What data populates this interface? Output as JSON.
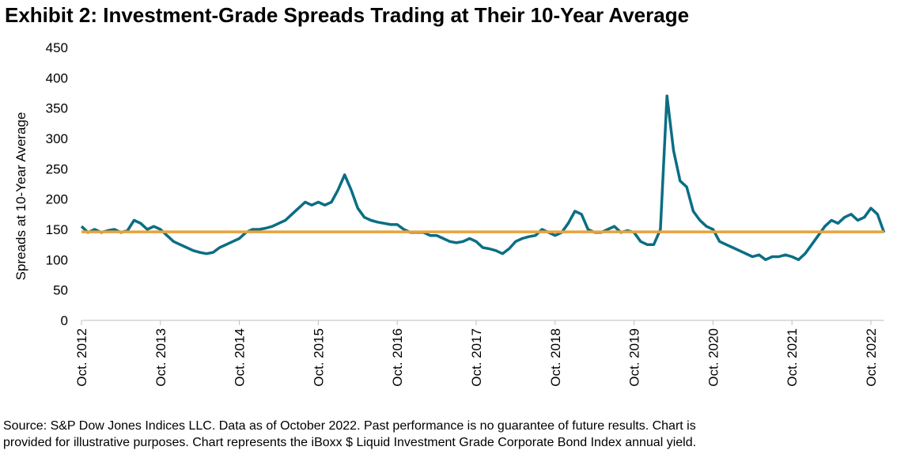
{
  "chart_data": {
    "type": "line",
    "title": "Exhibit 2: Investment-Grade Spreads Trading at Their 10-Year Average",
    "y_label": "Spreads at 10-Year Average",
    "notes": [
      "Source: S&P Dow Jones Indices LLC. Data as of October 2022. Past performance is no guarantee of future results. Chart is",
      "provided for illustrative purposes. Chart represents the iBoxx $ Liquid Investment Grade Corporate Bond Index annual yield."
    ],
    "categories": [
      "Oct. 2012",
      null,
      null,
      null,
      null,
      null,
      null,
      null,
      null,
      null,
      null,
      null,
      "Oct. 2013",
      null,
      null,
      null,
      null,
      null,
      null,
      null,
      null,
      null,
      null,
      null,
      "Oct. 2014",
      null,
      null,
      null,
      null,
      null,
      null,
      null,
      null,
      null,
      null,
      null,
      "Oct. 2015",
      null,
      null,
      null,
      null,
      null,
      null,
      null,
      null,
      null,
      null,
      null,
      "Oct. 2016",
      null,
      null,
      null,
      null,
      null,
      null,
      null,
      null,
      null,
      null,
      null,
      "Oct. 2017",
      null,
      null,
      null,
      null,
      null,
      null,
      null,
      null,
      null,
      null,
      null,
      "Oct. 2018",
      null,
      null,
      null,
      null,
      null,
      null,
      null,
      null,
      null,
      null,
      null,
      "Oct. 2019",
      null,
      null,
      null,
      null,
      null,
      null,
      null,
      null,
      null,
      null,
      null,
      "Oct. 2020",
      null,
      null,
      null,
      null,
      null,
      null,
      null,
      null,
      null,
      null,
      null,
      "Oct. 2021",
      null,
      null,
      null,
      null,
      null,
      null,
      null,
      null,
      null,
      null,
      null,
      "Oct. 2022",
      null,
      null
    ],
    "series": [
      {
        "color": "#0b6e84",
        "values": [
          155,
          145,
          150,
          145,
          148,
          150,
          145,
          148,
          165,
          160,
          150,
          155,
          150,
          140,
          130,
          125,
          120,
          115,
          112,
          110,
          112,
          120,
          125,
          130,
          135,
          145,
          150,
          150,
          152,
          155,
          160,
          165,
          175,
          185,
          195,
          190,
          195,
          190,
          195,
          215,
          240,
          215,
          185,
          170,
          165,
          162,
          160,
          158,
          158,
          150,
          145,
          145,
          145,
          140,
          140,
          135,
          130,
          128,
          130,
          135,
          130,
          120,
          118,
          115,
          110,
          118,
          130,
          135,
          138,
          140,
          150,
          145,
          140,
          145,
          160,
          180,
          175,
          150,
          145,
          145,
          150,
          155,
          145,
          148,
          145,
          130,
          125,
          125,
          150,
          370,
          280,
          230,
          220,
          180,
          165,
          155,
          150,
          130,
          125,
          120,
          115,
          110,
          105,
          108,
          100,
          105,
          105,
          108,
          105,
          100,
          110,
          125,
          140,
          155,
          165,
          160,
          170,
          175,
          165,
          170,
          185,
          175,
          145
        ]
      }
    ],
    "average": {
      "value": 146,
      "color": "#e8a33d"
    },
    "ylim": [
      0,
      450
    ],
    "yticks": [
      0,
      50,
      100,
      150,
      200,
      250,
      300,
      350,
      400,
      450
    ]
  }
}
